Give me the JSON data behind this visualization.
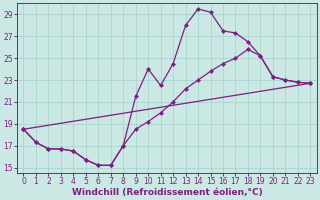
{
  "xlabel": "Windchill (Refroidissement éolien,°C)",
  "bg_color": "#cce8e4",
  "grid_color": "#aad4d0",
  "line_color": "#7b2080",
  "xlim": [
    -0.5,
    23.5
  ],
  "ylim": [
    14.5,
    30.0
  ],
  "xticks": [
    0,
    1,
    2,
    3,
    4,
    5,
    6,
    7,
    8,
    9,
    10,
    11,
    12,
    13,
    14,
    15,
    16,
    17,
    18,
    19,
    20,
    21,
    22,
    23
  ],
  "yticks": [
    15,
    17,
    19,
    21,
    23,
    25,
    27,
    29
  ],
  "line1_x": [
    0,
    1,
    2,
    3,
    4,
    5,
    6,
    7,
    8,
    9,
    10,
    11,
    12,
    13,
    14,
    15,
    16,
    17,
    18,
    19,
    20,
    21,
    22,
    23
  ],
  "line1_y": [
    18.5,
    17.3,
    16.7,
    16.7,
    16.5,
    15.7,
    15.2,
    15.2,
    17.0,
    21.5,
    24.0,
    22.5,
    24.5,
    28.0,
    29.5,
    29.2,
    27.5,
    27.3,
    26.5,
    25.2,
    23.3,
    23.0,
    22.8,
    22.7
  ],
  "line2_x": [
    0,
    1,
    2,
    3,
    4,
    5,
    6,
    7,
    8,
    9,
    10,
    11,
    12,
    13,
    14,
    15,
    16,
    17,
    18,
    19,
    20,
    21,
    22,
    23
  ],
  "line2_y": [
    18.5,
    17.3,
    16.7,
    16.7,
    16.5,
    15.7,
    15.2,
    15.2,
    17.0,
    18.5,
    19.2,
    20.0,
    21.0,
    22.2,
    23.0,
    23.8,
    24.5,
    25.0,
    25.8,
    25.2,
    23.3,
    23.0,
    22.8,
    22.7
  ],
  "line3_x": [
    0,
    23
  ],
  "line3_y": [
    18.5,
    22.7
  ],
  "markersize": 2.5,
  "linewidth": 0.9,
  "tick_fontsize": 5.5,
  "label_fontsize": 6.5,
  "marker": "D"
}
